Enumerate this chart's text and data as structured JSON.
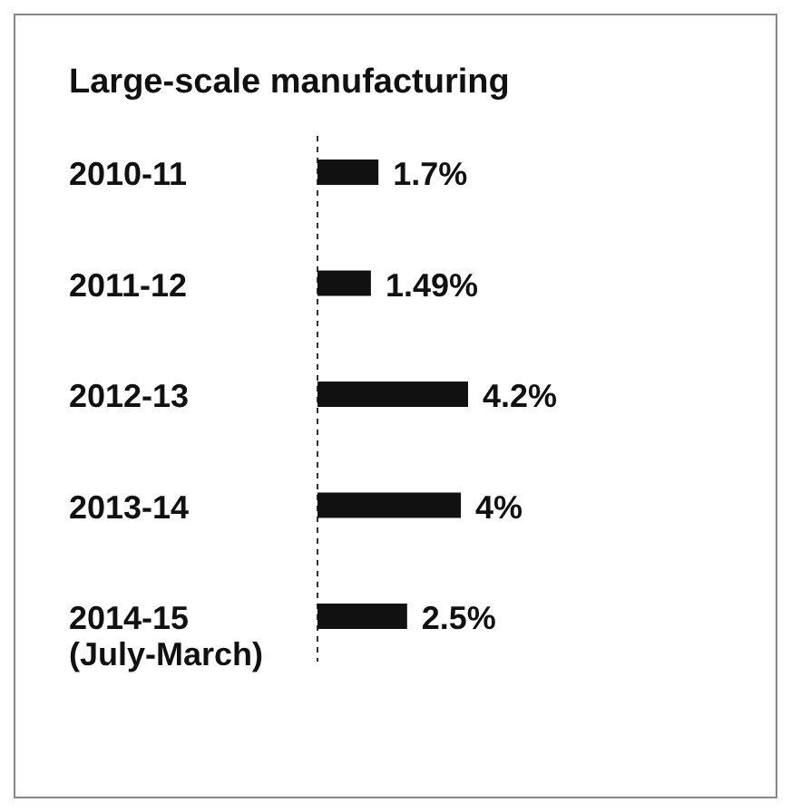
{
  "chart_data": {
    "type": "bar",
    "orientation": "horizontal",
    "title": "Large-scale manufacturing",
    "categories": [
      "2010-11",
      "2011-12",
      "2012-13",
      "2013-14",
      "2014-15\n(July-March)"
    ],
    "values": [
      1.7,
      1.49,
      4.2,
      4,
      2.5
    ],
    "value_labels": [
      "1.7%",
      "1.49%",
      "4.2%",
      "4%",
      "2.5%"
    ],
    "color": "#111111"
  }
}
